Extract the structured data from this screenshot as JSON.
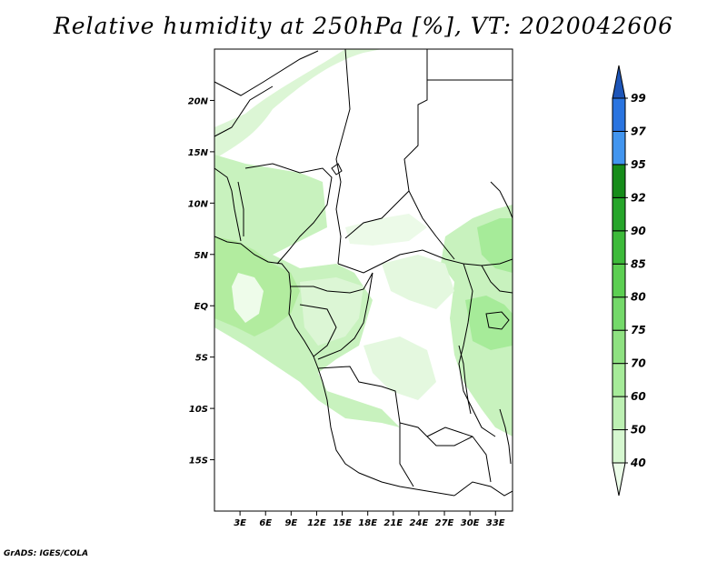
{
  "title": "Relative humidity at 250hPa [%], VT: 2020042606",
  "credit": "GrADS: IGES/COLA",
  "map": {
    "region": "Central Africa",
    "lon_range": [
      0,
      35
    ],
    "lat_range": [
      -20,
      25
    ],
    "lat_ticks": [
      {
        "value": 20,
        "label": "20N"
      },
      {
        "value": 15,
        "label": "15N"
      },
      {
        "value": 10,
        "label": "10N"
      },
      {
        "value": 5,
        "label": "5N"
      },
      {
        "value": 0,
        "label": "EQ"
      },
      {
        "value": -5,
        "label": "5S"
      },
      {
        "value": -10,
        "label": "10S"
      },
      {
        "value": -15,
        "label": "15S"
      }
    ],
    "lon_ticks": [
      {
        "value": 3,
        "label": "3E"
      },
      {
        "value": 6,
        "label": "6E"
      },
      {
        "value": 9,
        "label": "9E"
      },
      {
        "value": 12,
        "label": "12E"
      },
      {
        "value": 15,
        "label": "15E"
      },
      {
        "value": 18,
        "label": "18E"
      },
      {
        "value": 21,
        "label": "21E"
      },
      {
        "value": 24,
        "label": "24E"
      },
      {
        "value": 27,
        "label": "27E"
      },
      {
        "value": 30,
        "label": "30E"
      },
      {
        "value": 33,
        "label": "33E"
      }
    ]
  },
  "colorbar": {
    "levels": [
      "40",
      "50",
      "60",
      "70",
      "75",
      "80",
      "85",
      "90",
      "92",
      "95",
      "97",
      "99"
    ],
    "colors": [
      "#ebfce8",
      "#d6f7d0",
      "#bdf0b3",
      "#a6eb99",
      "#8ee181",
      "#74d96a",
      "#5ccf52",
      "#3dba3a",
      "#26a52a",
      "#168c1a",
      "#4295ef",
      "#2a74e0",
      "#1d55b8"
    ]
  },
  "humidity_regions": [
    {
      "level": "40",
      "lon": [
        0,
        35
      ],
      "lat": [
        -12,
        12
      ]
    },
    {
      "level": "50",
      "lon": [
        0,
        6
      ],
      "lat": [
        -10,
        8
      ]
    },
    {
      "level": "60",
      "lon": [
        0,
        5
      ],
      "lat": [
        -6,
        5
      ]
    },
    {
      "level": "50",
      "lon": [
        28,
        35
      ],
      "lat": [
        -10,
        6
      ]
    },
    {
      "level": "60",
      "lon": [
        30,
        35
      ],
      "lat": [
        -4,
        2
      ]
    }
  ]
}
